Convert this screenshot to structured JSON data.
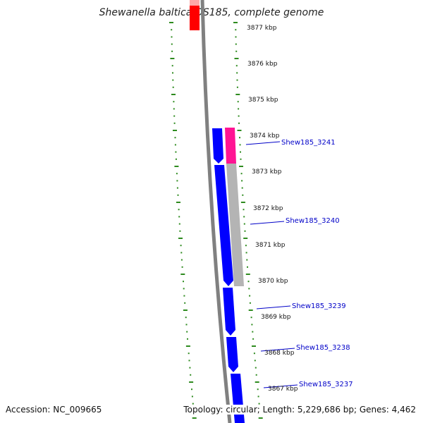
{
  "title": "Shewanella baltica OS185, complete genome",
  "footer": {
    "accession": "Accession: NC_009665",
    "summary": "Topology: circular; Length: 5,229,686 bp; Genes: 4,462"
  },
  "kbp_labels": [
    "3877 kbp",
    "3876 kbp",
    "3875 kbp",
    "3874 kbp",
    "3873 kbp",
    "3872 kbp",
    "3871 kbp",
    "3870 kbp",
    "3869 kbp",
    "3868 kbp",
    "3867 kbp"
  ],
  "gene_labels": [
    "Shew185_3241",
    "Shew185_3240",
    "Shew185_3239",
    "Shew185_3238",
    "Shew185_3237"
  ],
  "colors": {
    "gene_blue": "#0000ff",
    "pink": "#ff1493",
    "red": "#ff0000",
    "gray_band": "#b4b4b4",
    "backbone": "#808080",
    "ticks_green": "#2e8b1f",
    "label_blue": "#0000c8"
  }
}
